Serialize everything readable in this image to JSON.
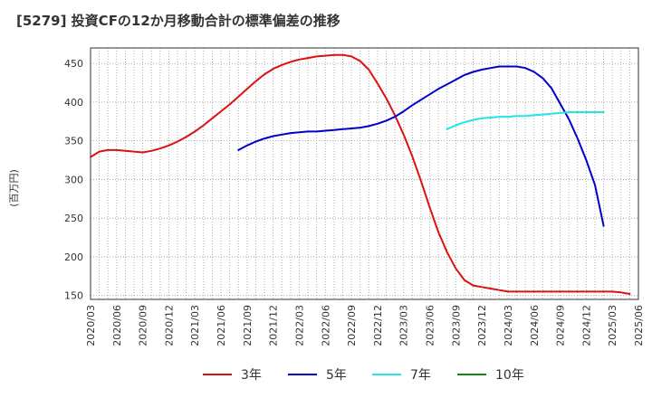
{
  "title": "[5279]  投資CFの12か月移動合計の標準偏差の推移",
  "y_unit": "(百万円)",
  "chart_data": {
    "type": "line",
    "xlabel": "",
    "ylabel": "(百万円)",
    "ylim": [
      145,
      470
    ],
    "y_ticks": [
      150,
      200,
      250,
      300,
      350,
      400,
      450
    ],
    "x_tick_labels": [
      "2020/03",
      "2020/06",
      "2020/09",
      "2020/12",
      "2021/03",
      "2021/06",
      "2021/09",
      "2021/12",
      "2022/03",
      "2022/06",
      "2022/09",
      "2022/12",
      "2023/03",
      "2023/06",
      "2023/09",
      "2023/12",
      "2024/03",
      "2024/06",
      "2024/09",
      "2024/12",
      "2025/03",
      "2025/06"
    ],
    "grid": true,
    "legend_position": "bottom",
    "series": [
      {
        "name": "3年",
        "color": "#dd1111",
        "start": "2020/03",
        "values": [
          329,
          336,
          338,
          338,
          337,
          336,
          335,
          337,
          340,
          344,
          349,
          355,
          362,
          370,
          379,
          388,
          397,
          407,
          417,
          427,
          436,
          443,
          448,
          452,
          455,
          457,
          459,
          460,
          461,
          461,
          459,
          453,
          442,
          424,
          405,
          383,
          358,
          330,
          298,
          264,
          232,
          206,
          185,
          170,
          163,
          161,
          159,
          157,
          155,
          155,
          155,
          155,
          155,
          155,
          155,
          155,
          155,
          155,
          155,
          155,
          155,
          154,
          152
        ]
      },
      {
        "name": "5年",
        "color": "#0000cc",
        "start": "2021/08",
        "values": [
          338,
          344,
          349,
          353,
          356,
          358,
          360,
          361,
          362,
          362,
          363,
          364,
          365,
          366,
          367,
          369,
          372,
          376,
          381,
          388,
          396,
          403,
          410,
          417,
          423,
          429,
          435,
          439,
          442,
          444,
          446,
          446,
          446,
          444,
          439,
          431,
          418,
          398,
          378,
          353,
          325,
          293,
          240
        ]
      },
      {
        "name": "7年",
        "color": "#22e5e5",
        "start": "2023/08",
        "values": [
          365,
          370,
          374,
          377,
          379,
          380,
          381,
          381,
          382,
          382,
          383,
          384,
          385,
          386,
          387,
          387,
          387,
          387,
          387
        ]
      },
      {
        "name": "10年",
        "color": "#118811",
        "start": "2025/03",
        "values": []
      }
    ]
  }
}
